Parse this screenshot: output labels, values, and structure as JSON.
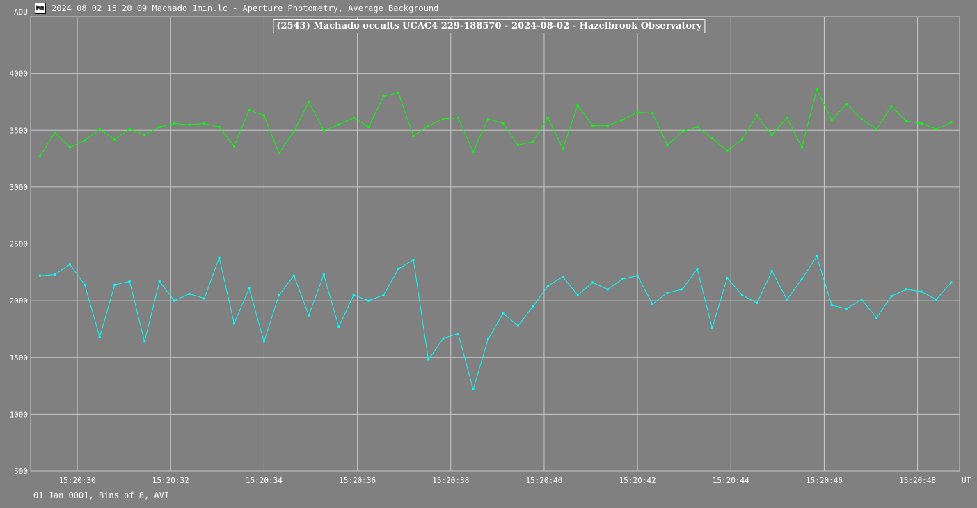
{
  "window": {
    "title": "2024_08_02_15_20_09_Machado_1min.lc - Aperture Photometry, Average Background",
    "icon": "lightcurve-app-icon"
  },
  "footer": {
    "text": "01 Jan 0001, Bins of 8, AVI"
  },
  "colors": {
    "background": "#808080",
    "grid": "#c8c8c8",
    "target": "#00ffff",
    "comparison": "#00ff00"
  },
  "chart_data": {
    "type": "line",
    "title": "(2543) Machado occults UCAC4 229-188570 - 2024-08-02 - Hazelbrook Observatory",
    "xlabel": "UT",
    "ylabel": "ADU",
    "x_range": [
      "15:20:29.0",
      "15:20:48.9"
    ],
    "ylim": [
      500,
      4500
    ],
    "x_ticks": [
      "15:20:30",
      "15:20:32",
      "15:20:34",
      "15:20:36",
      "15:20:38",
      "15:20:40",
      "15:20:42",
      "15:20:44",
      "15:20:46",
      "15:20:48"
    ],
    "y_ticks": [
      500,
      1000,
      1500,
      2000,
      2500,
      3000,
      3500,
      4000
    ],
    "grid": true,
    "x": [
      "15:20:29.20",
      "15:20:29.52",
      "15:20:29.84",
      "15:20:30.16",
      "15:20:30.48",
      "15:20:30.80",
      "15:20:31.12",
      "15:20:31.44",
      "15:20:31.76",
      "15:20:32.08",
      "15:20:32.40",
      "15:20:32.72",
      "15:20:33.04",
      "15:20:33.36",
      "15:20:33.68",
      "15:20:34.00",
      "15:20:34.32",
      "15:20:34.64",
      "15:20:34.96",
      "15:20:35.28",
      "15:20:35.60",
      "15:20:35.92",
      "15:20:36.24",
      "15:20:36.56",
      "15:20:36.88",
      "15:20:37.20",
      "15:20:37.52",
      "15:20:37.84",
      "15:20:38.16",
      "15:20:38.48",
      "15:20:38.80",
      "15:20:39.12",
      "15:20:39.44",
      "15:20:39.76",
      "15:20:40.08",
      "15:20:40.40",
      "15:20:40.72",
      "15:20:41.04",
      "15:20:41.36",
      "15:20:41.68",
      "15:20:42.00",
      "15:20:42.32",
      "15:20:42.64",
      "15:20:42.96",
      "15:20:43.28",
      "15:20:43.60",
      "15:20:43.92",
      "15:20:44.24",
      "15:20:44.56",
      "15:20:44.88",
      "15:20:45.20",
      "15:20:45.52",
      "15:20:45.84",
      "15:20:46.16",
      "15:20:46.48",
      "15:20:46.80",
      "15:20:47.12",
      "15:20:47.44",
      "15:20:47.76",
      "15:20:48.08",
      "15:20:48.40",
      "15:20:48.72"
    ],
    "series": [
      {
        "color": "#00ff00",
        "values": [
          3270,
          3480,
          3350,
          3410,
          3510,
          3420,
          3510,
          3460,
          3530,
          3560,
          3550,
          3560,
          3530,
          3360,
          3680,
          3630,
          3300,
          3490,
          3750,
          3500,
          3550,
          3610,
          3530,
          3800,
          3830,
          3450,
          3540,
          3600,
          3610,
          3310,
          3600,
          3560,
          3370,
          3400,
          3610,
          3340,
          3720,
          3540,
          3540,
          3590,
          3660,
          3650,
          3370,
          3490,
          3530,
          3430,
          3320,
          3420,
          3630,
          3460,
          3610,
          3350,
          3860,
          3590,
          3730,
          3600,
          3510,
          3710,
          3580,
          3560,
          3510,
          3570
        ]
      },
      {
        "color": "#00ffff",
        "values": [
          2220,
          2230,
          2320,
          2140,
          1680,
          2140,
          2170,
          1640,
          2170,
          2000,
          2060,
          2020,
          2380,
          1800,
          2110,
          1640,
          2050,
          2220,
          1870,
          2230,
          1770,
          2050,
          2000,
          2050,
          2280,
          2360,
          1480,
          1670,
          1710,
          1220,
          1660,
          1890,
          1780,
          1950,
          2130,
          2210,
          2050,
          2160,
          2100,
          2190,
          2220,
          1970,
          2070,
          2100,
          2280,
          1760,
          2200,
          2050,
          1980,
          2260,
          2010,
          2190,
          2390,
          1960,
          1930,
          2010,
          1850,
          2040,
          2100,
          2080,
          2010,
          2160
        ]
      }
    ]
  }
}
